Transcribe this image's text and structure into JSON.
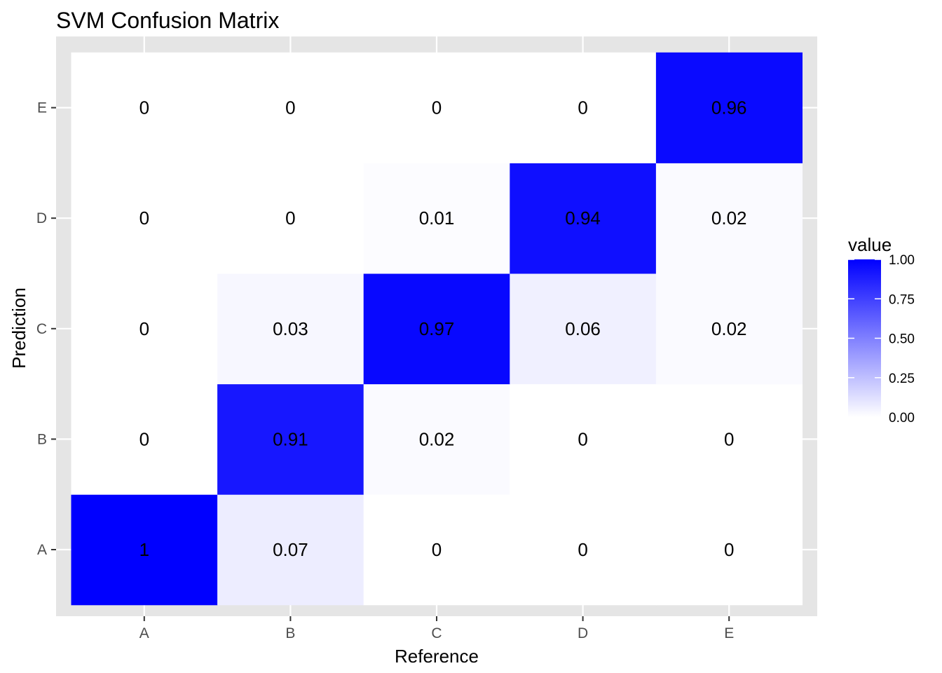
{
  "chart_data": {
    "type": "heatmap",
    "title": "SVM Confusion Matrix",
    "xlabel": "Reference",
    "ylabel": "Prediction",
    "x_categories": [
      "A",
      "B",
      "C",
      "D",
      "E"
    ],
    "y_categories": [
      "A",
      "B",
      "C",
      "D",
      "E"
    ],
    "cells": [
      {
        "x": "A",
        "y": "A",
        "value": 1.0,
        "label": "1"
      },
      {
        "x": "B",
        "y": "A",
        "value": 0.07,
        "label": "0.07"
      },
      {
        "x": "C",
        "y": "A",
        "value": 0.0,
        "label": "0"
      },
      {
        "x": "D",
        "y": "A",
        "value": 0.0,
        "label": "0"
      },
      {
        "x": "E",
        "y": "A",
        "value": 0.0,
        "label": "0"
      },
      {
        "x": "A",
        "y": "B",
        "value": 0.0,
        "label": "0"
      },
      {
        "x": "B",
        "y": "B",
        "value": 0.91,
        "label": "0.91"
      },
      {
        "x": "C",
        "y": "B",
        "value": 0.02,
        "label": "0.02"
      },
      {
        "x": "D",
        "y": "B",
        "value": 0.0,
        "label": "0"
      },
      {
        "x": "E",
        "y": "B",
        "value": 0.0,
        "label": "0"
      },
      {
        "x": "A",
        "y": "C",
        "value": 0.0,
        "label": "0"
      },
      {
        "x": "B",
        "y": "C",
        "value": 0.03,
        "label": "0.03"
      },
      {
        "x": "C",
        "y": "C",
        "value": 0.97,
        "label": "0.97"
      },
      {
        "x": "D",
        "y": "C",
        "value": 0.06,
        "label": "0.06"
      },
      {
        "x": "E",
        "y": "C",
        "value": 0.02,
        "label": "0.02"
      },
      {
        "x": "A",
        "y": "D",
        "value": 0.0,
        "label": "0"
      },
      {
        "x": "B",
        "y": "D",
        "value": 0.0,
        "label": "0"
      },
      {
        "x": "C",
        "y": "D",
        "value": 0.01,
        "label": "0.01"
      },
      {
        "x": "D",
        "y": "D",
        "value": 0.94,
        "label": "0.94"
      },
      {
        "x": "E",
        "y": "D",
        "value": 0.02,
        "label": "0.02"
      },
      {
        "x": "A",
        "y": "E",
        "value": 0.0,
        "label": "0"
      },
      {
        "x": "B",
        "y": "E",
        "value": 0.0,
        "label": "0"
      },
      {
        "x": "C",
        "y": "E",
        "value": 0.0,
        "label": "0"
      },
      {
        "x": "D",
        "y": "E",
        "value": 0.0,
        "label": "0"
      },
      {
        "x": "E",
        "y": "E",
        "value": 0.96,
        "label": "0.96"
      }
    ],
    "legend": {
      "title": "value",
      "placement": "right",
      "range": [
        0,
        1
      ],
      "ticks": [
        0,
        0.25,
        0.5,
        0.75,
        1
      ],
      "tick_labels": [
        "0.00",
        "0.25",
        "0.50",
        "0.75",
        "1.00"
      ]
    },
    "colors": {
      "low": "#ffffff",
      "high": "#0000ff",
      "panel_background": "#e5e5e5",
      "grid": "#ffffff"
    },
    "grid": true
  }
}
